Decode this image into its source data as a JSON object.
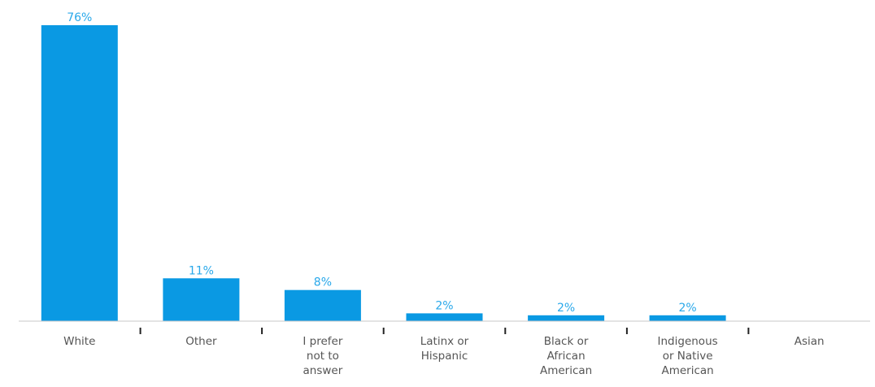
{
  "chart_data": {
    "type": "bar",
    "categories": [
      "White",
      "Other",
      "I prefer not to answer",
      "Latinx or Hispanic",
      "Black or African American",
      "Indigenous or Native American",
      "Asian"
    ],
    "category_label_lines": [
      [
        "White"
      ],
      [
        "Other"
      ],
      [
        "I prefer",
        "not to",
        "answer"
      ],
      [
        "Latinx or",
        "Hispanic"
      ],
      [
        "Black or",
        "African",
        "American"
      ],
      [
        "Indigenous",
        "or Native",
        "American"
      ],
      [
        "Asian"
      ]
    ],
    "values": [
      76,
      11,
      8,
      2,
      1.5,
      1.5,
      0
    ],
    "value_labels": [
      "76%",
      "11%",
      "8%",
      "2%",
      "2%",
      "2%",
      ""
    ],
    "unit": "%",
    "title": "",
    "xlabel": "",
    "ylabel": "",
    "ylim": [
      0,
      76
    ],
    "grid": false,
    "legend": "none",
    "bar_color": "#0a99e3",
    "label_color": "#29a8ea",
    "axis_label_color": "#555555"
  }
}
